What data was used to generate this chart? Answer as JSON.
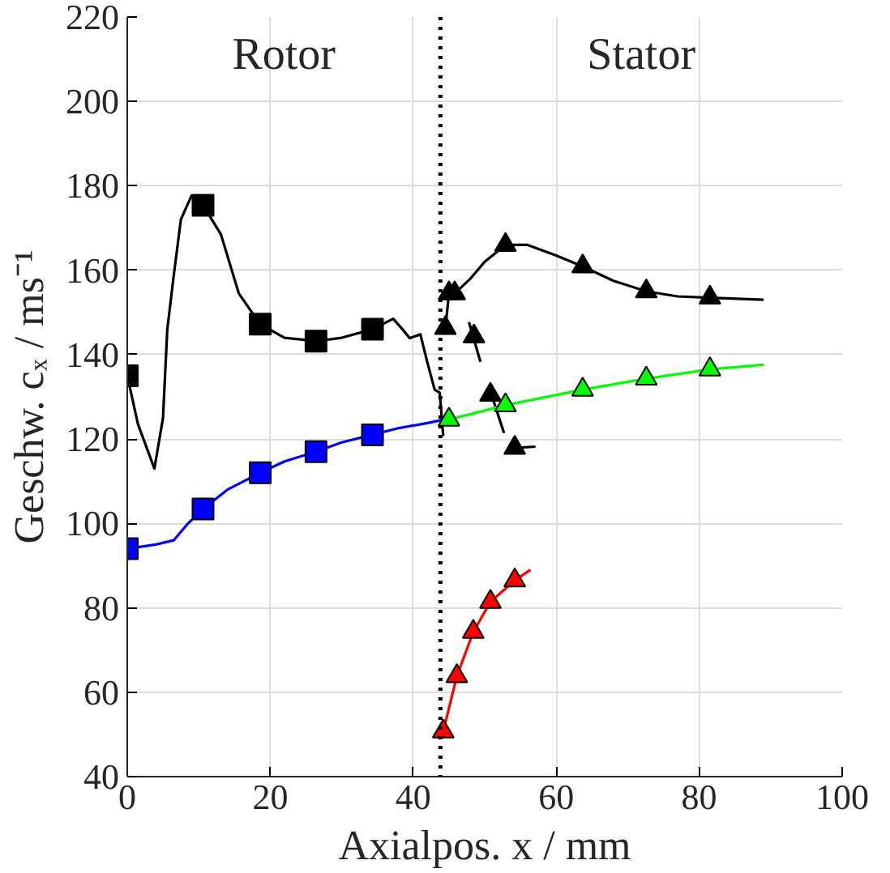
{
  "chart_data": {
    "type": "line",
    "xlabel": "Axialpos. x / mm",
    "ylabel": "Geschw. cₓ / ms⁻¹",
    "xlim": [
      0,
      100
    ],
    "ylim": [
      40,
      220
    ],
    "xticks": [
      0,
      20,
      40,
      60,
      80,
      100
    ],
    "yticks": [
      40,
      60,
      80,
      100,
      120,
      140,
      160,
      180,
      200,
      220
    ],
    "grid": true,
    "annotations": [
      "Rotor",
      "Stator"
    ],
    "ref_lines": [
      {
        "axis": "x",
        "value": 43.8,
        "line_style": "dotted",
        "color": "#000000"
      }
    ],
    "series": [
      {
        "color": "#000000",
        "x": [
          0,
          1.5,
          3.8,
          5,
          5.6,
          6.5,
          7.5,
          9,
          10.6,
          13.1,
          15.6,
          18.6,
          22,
          26.4,
          30,
          34.3,
          37.2,
          38.5,
          39.5,
          41,
          42,
          43,
          43.7,
          44.2
        ],
        "values": [
          135,
          123.5,
          113,
          125,
          146,
          158.7,
          172,
          177.7,
          175.4,
          168.5,
          154.5,
          147.2,
          144,
          143.2,
          144,
          146,
          148.5,
          146,
          143.9,
          144.8,
          138,
          131.7,
          131,
          120.7
        ]
      },
      {
        "type": "scatter",
        "marker": "square",
        "color": "#000000",
        "x": [
          0,
          10.6,
          18.6,
          26.4,
          34.3
        ],
        "values": [
          135,
          175.4,
          147.2,
          143.2,
          146
        ]
      },
      {
        "color": "#0000ff",
        "x": [
          0,
          4,
          6.5,
          8.5,
          10.6,
          14,
          18.6,
          22,
          26.4,
          30,
          34.3,
          38,
          42,
          44
        ],
        "values": [
          94,
          95,
          96,
          100,
          103.4,
          108,
          112,
          114.7,
          117,
          119.2,
          121,
          122.6,
          123.8,
          124.5
        ]
      },
      {
        "type": "scatter",
        "marker": "square",
        "color": "#0000ff",
        "x": [
          0,
          10.6,
          18.6,
          26.4,
          34.3
        ],
        "values": [
          94,
          103.4,
          112,
          117,
          121
        ]
      },
      {
        "color": "#000000",
        "x": [
          44.5,
          45,
          45.8,
          48,
          50,
          52.9,
          56,
          60,
          63.7,
          68,
          72.6,
          77,
          81.5,
          89
        ],
        "values": [
          146.3,
          154.5,
          154.5,
          158,
          162,
          166,
          166,
          163.5,
          160.9,
          157.5,
          155,
          153.8,
          153.5,
          153
        ]
      },
      {
        "type": "scatter",
        "marker": "triangle",
        "color": "#000000",
        "x": [
          45,
          45.8,
          52.9,
          63.7,
          72.6,
          81.5
        ],
        "values": [
          154.5,
          154.5,
          166,
          160.9,
          155,
          153.5
        ]
      },
      {
        "color": "#000000",
        "x": [
          47.8,
          49.4,
          null,
          50.8,
          52.7,
          null,
          54.2,
          57.1
        ],
        "values": [
          147.7,
          138.3,
          null,
          131.3,
          121.4,
          null,
          117.9,
          118.2
        ]
      },
      {
        "type": "scatter",
        "marker": "triangle",
        "color": "#000000",
        "x": [
          44.5,
          48.5,
          50.8,
          54.2
        ],
        "values": [
          146.3,
          144.3,
          130.5,
          117.9
        ]
      },
      {
        "color": "#00ff00",
        "x": [
          45,
          52.9,
          63.7,
          72.6,
          81.5,
          89
        ],
        "values": [
          124.6,
          128,
          131.7,
          134.3,
          136.5,
          137.6
        ]
      },
      {
        "type": "scatter",
        "marker": "triangle",
        "color": "#00ff00",
        "x": [
          45,
          52.9,
          63.7,
          72.6,
          81.5
        ],
        "values": [
          124.6,
          128,
          131.7,
          134.3,
          136.5
        ]
      },
      {
        "color": "#ff0000",
        "x": [
          44.2,
          46.1,
          48.4,
          50.8,
          54.2,
          56.4
        ],
        "values": [
          50.7,
          63.8,
          74.3,
          81.4,
          86.5,
          89
        ]
      },
      {
        "type": "scatter",
        "marker": "triangle",
        "color": "#ff0000",
        "x": [
          44.2,
          46.1,
          48.4,
          50.8,
          54.2
        ],
        "values": [
          50.7,
          63.8,
          74.3,
          81.4,
          86.5
        ]
      }
    ]
  }
}
